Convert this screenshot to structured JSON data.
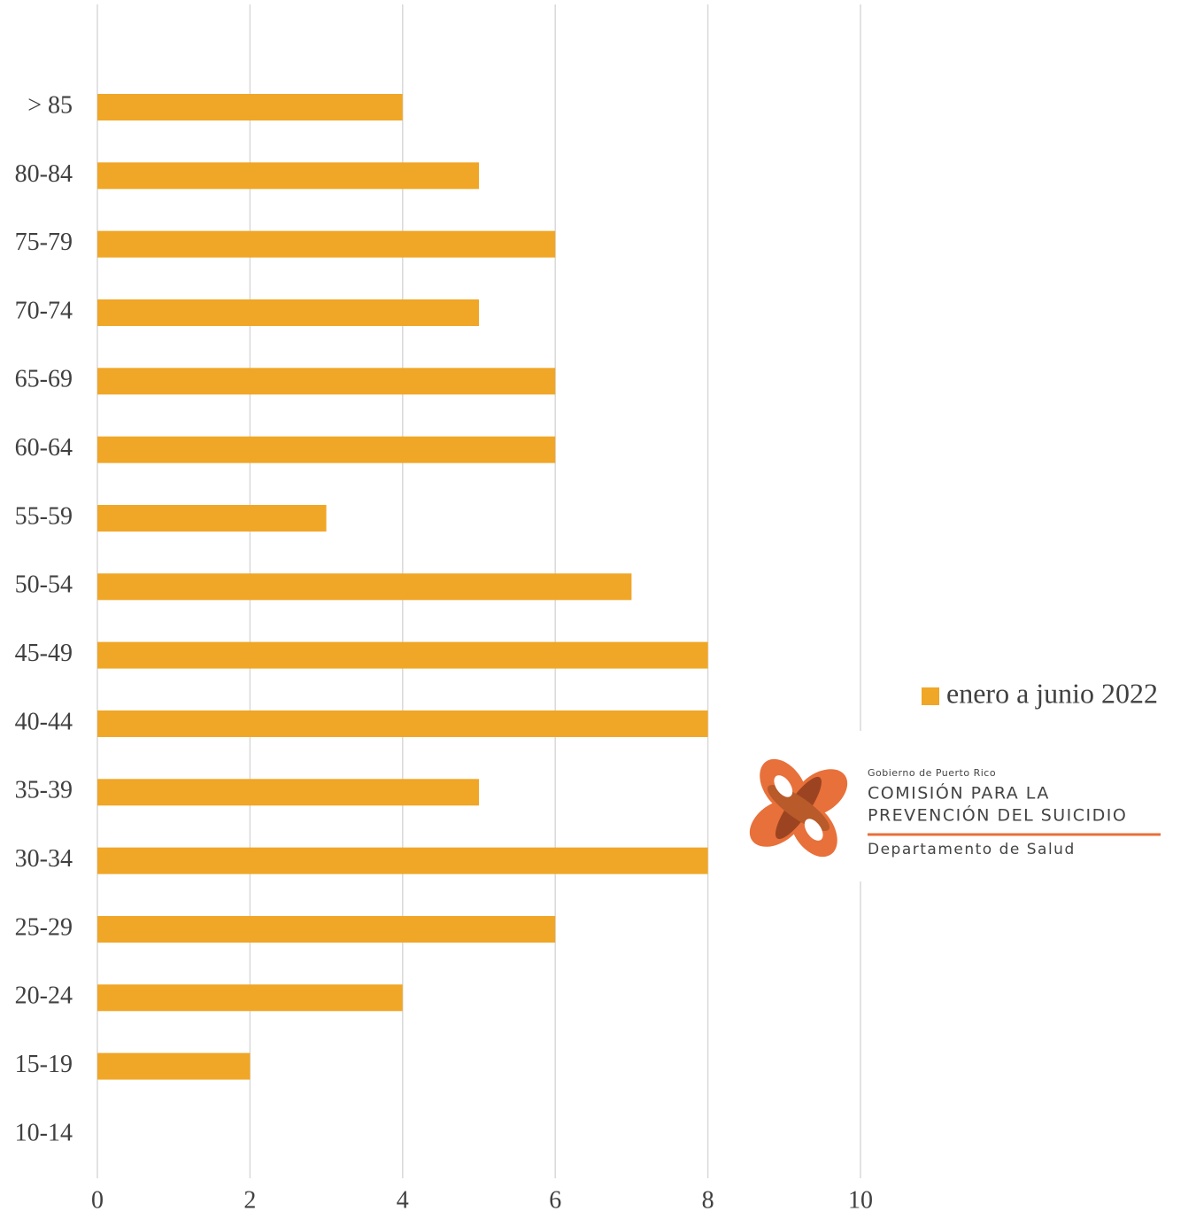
{
  "chart_data": {
    "type": "barh",
    "categories": [
      "> 85",
      "80-84",
      "75-79",
      "70-74",
      "65-69",
      "60-64",
      "55-59",
      "50-54",
      "45-49",
      "40-44",
      "35-39",
      "30-34",
      "25-29",
      "20-24",
      "15-19",
      "10-14"
    ],
    "series": [
      {
        "name": "enero a junio 2022",
        "color": "#f0a626",
        "values": [
          4,
          5,
          6,
          5,
          6,
          6,
          3,
          7,
          8,
          8,
          5,
          8,
          6,
          4,
          2,
          0
        ]
      }
    ],
    "xlim": [
      0,
      10
    ],
    "xticks": [
      0,
      2,
      4,
      6,
      8,
      10
    ],
    "grid": true,
    "legend": "right",
    "annotations": [
      "Gobierno de Puerto Rico",
      "COMISIÓN PARA LA",
      "PREVENCIÓN DEL SUICIDIO",
      "Departamento de Salud"
    ]
  }
}
